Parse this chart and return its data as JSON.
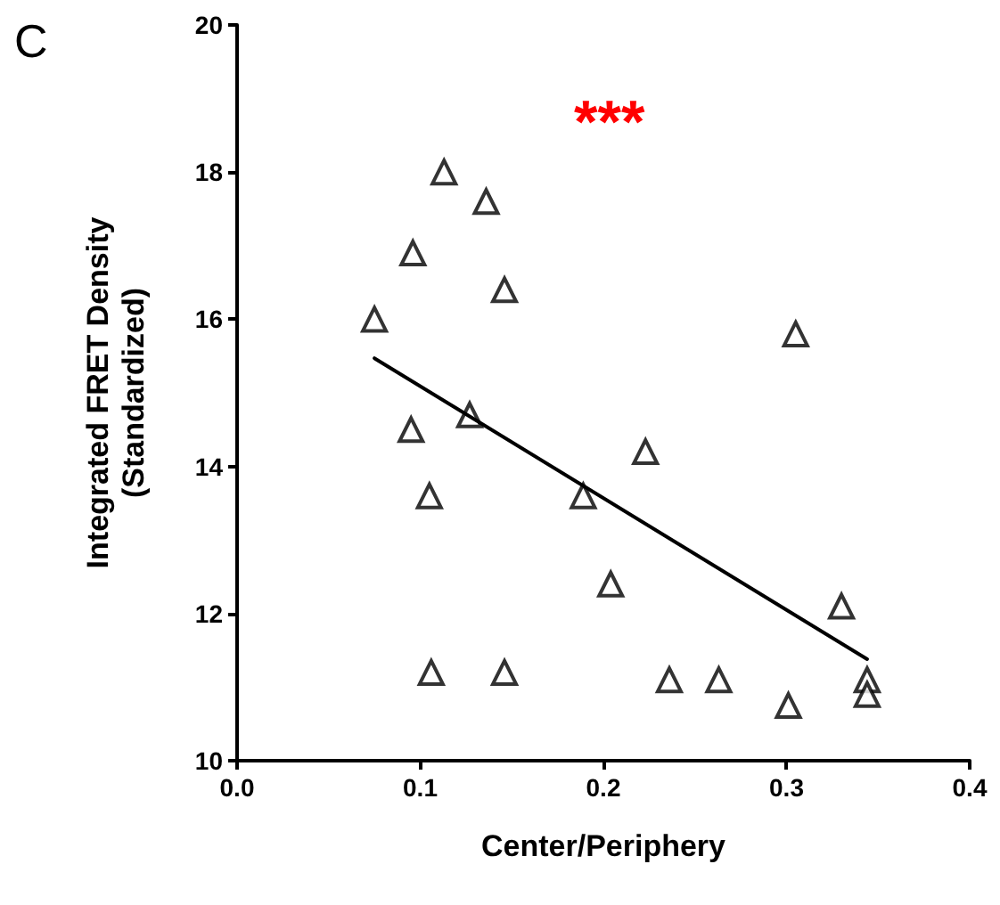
{
  "chart_data": {
    "type": "scatter",
    "xlabel": "Center/Periphery",
    "ylabel": "Integrated FRET Density\n(Standardized)",
    "annotations": [
      "C",
      "***"
    ],
    "xlim": [
      0,
      0.4
    ],
    "xticks": [
      {
        "value": 0,
        "label": "0.0"
      },
      {
        "value": 0.1,
        "label": "0.1"
      },
      {
        "value": 0.2,
        "label": "0.2"
      },
      {
        "value": 0.3,
        "label": "0.3"
      },
      {
        "value": 0.4,
        "label": "0.4"
      }
    ],
    "ylim": [
      10,
      20
    ],
    "yticks": [
      10,
      12,
      14,
      16,
      18,
      20
    ],
    "grid": false,
    "marker": "triangle",
    "series": [
      {
        "color": "#000000",
        "x": [
          0.075,
          0.113,
          0.136,
          0.096,
          0.146,
          0.095,
          0.127,
          0.105,
          0.106,
          0.146,
          0.189,
          0.204,
          0.223,
          0.236,
          0.263,
          0.305,
          0.301,
          0.33,
          0.344,
          0.344
        ],
        "values": [
          16.0,
          18.0,
          17.6,
          16.9,
          16.4,
          14.5,
          14.7,
          13.6,
          11.2,
          11.2,
          13.6,
          12.4,
          14.2,
          11.1,
          11.1,
          15.8,
          10.75,
          12.1,
          11.1,
          10.9
        ]
      },
      {
        "type": "line",
        "color": "#000000",
        "marker": "none",
        "line_style": "solid",
        "x": [
          0.075,
          0.344
        ],
        "values": [
          15.47,
          11.38
        ]
      }
    ]
  }
}
